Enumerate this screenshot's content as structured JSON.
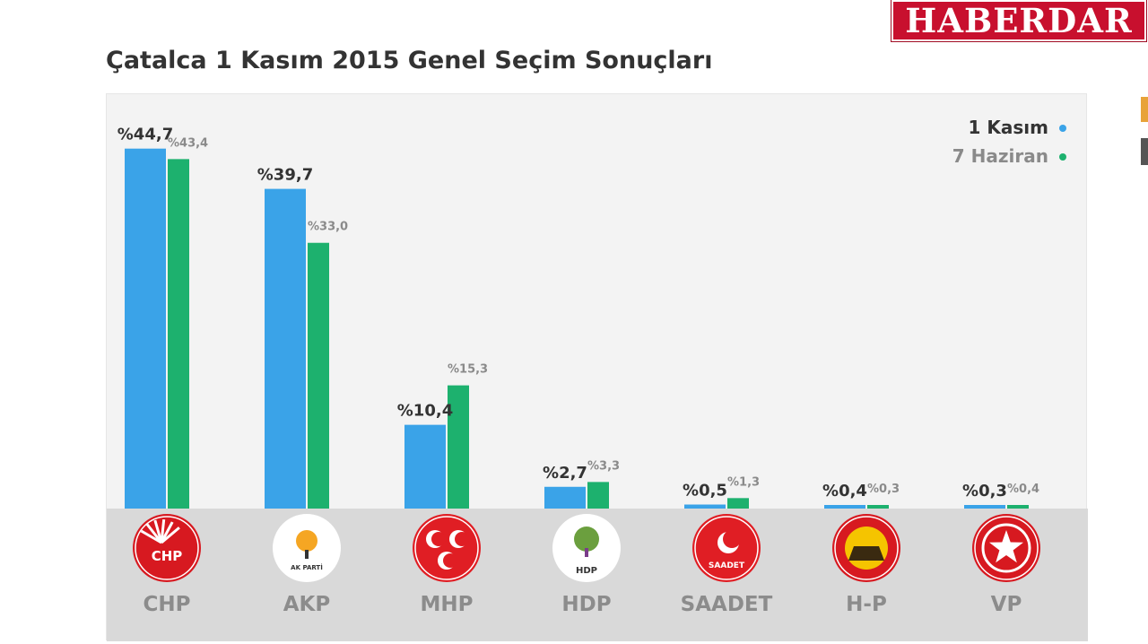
{
  "brand": {
    "name": "HABERDAR"
  },
  "chart_data": {
    "type": "bar",
    "title": "Çatalca 1 Kasım 2015 Genel Seçim Sonuçları",
    "categories": [
      "CHP",
      "AKP",
      "MHP",
      "HDP",
      "SAADET",
      "H-P",
      "VP"
    ],
    "series": [
      {
        "name": "1 Kasım",
        "color": "#3aa3e8",
        "values": [
          44.7,
          39.7,
          10.4,
          2.7,
          0.5,
          0.4,
          0.3
        ],
        "labels": [
          "%44,7",
          "%39,7",
          "%10,4",
          "%2,7",
          "%0,5",
          "%0,4",
          "%0,3"
        ]
      },
      {
        "name": "7 Haziran",
        "color": "#1db16e",
        "values": [
          43.4,
          33.0,
          15.3,
          3.3,
          1.3,
          0.3,
          0.4
        ],
        "labels": [
          "%43,4",
          "%33,0",
          "%15,3",
          "%3,3",
          "%1,3",
          "%0,3",
          "%0,4"
        ]
      }
    ],
    "ylim": [
      0,
      45
    ],
    "xlabel": "",
    "ylabel": "",
    "legend_position": "top-right",
    "grid": false,
    "logos": [
      {
        "party": "CHP",
        "icon": "chp-logo-icon",
        "text": "CHP",
        "color": "#d71920"
      },
      {
        "party": "AKP",
        "icon": "akp-logo-icon",
        "text": "AK PARTİ",
        "color": "#f5a623"
      },
      {
        "party": "MHP",
        "icon": "mhp-logo-icon",
        "text": "",
        "color": "#e01e24"
      },
      {
        "party": "HDP",
        "icon": "hdp-logo-icon",
        "text": "HDP",
        "color": "#6b9f3e"
      },
      {
        "party": "SAADET",
        "icon": "saadet-logo-icon",
        "text": "SAADET",
        "color": "#e01e24"
      },
      {
        "party": "H-P",
        "icon": "hp-logo-icon",
        "text": "",
        "color": "#d71920"
      },
      {
        "party": "VP",
        "icon": "vp-logo-icon",
        "text": "",
        "color": "#d71920"
      }
    ]
  }
}
